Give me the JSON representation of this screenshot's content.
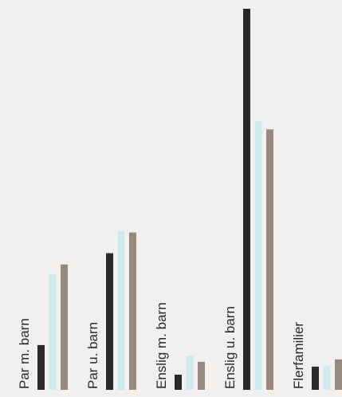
{
  "chart_data": {
    "type": "bar",
    "categories": [
      "Par m. barn",
      "Par u. barn",
      "Enslig m. barn",
      "Enslig u. barn",
      "Flerfamilier"
    ],
    "series": [
      {
        "values": [
          56,
          171,
          19,
          477,
          29
        ]
      },
      {
        "values": [
          145,
          199,
          43,
          336,
          30
        ]
      },
      {
        "values": [
          157,
          197,
          35,
          326,
          38
        ]
      }
    ],
    "colors": [
      "#2b2a29",
      "#cdebef",
      "#978880"
    ],
    "ylim": [
      0,
      477
    ],
    "grid": false,
    "legend": "none"
  }
}
